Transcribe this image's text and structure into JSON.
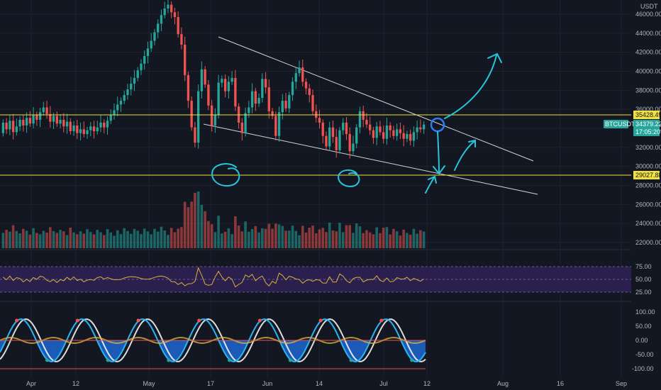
{
  "chart_data": {
    "type": "candlestick",
    "symbol": "BTCUSDT",
    "currency": "USDT",
    "price_ticks": [
      46000,
      44000,
      42000,
      40000,
      38000,
      36000,
      34000,
      32000,
      30000,
      28000,
      26000,
      24000,
      22000
    ],
    "ylim": [
      21000,
      46500
    ],
    "date_ticks": [
      "Apr",
      "12",
      "May",
      "17",
      "Jun",
      "14",
      "Jul",
      "12",
      "Aug",
      "16",
      "Sep"
    ],
    "resistance_level": "35428.49",
    "support_level": "29027.88",
    "last_price": "34379.22",
    "countdown": "17:05:20",
    "visible_high": 47000,
    "sequence": [
      [
        33.5,
        34.6
      ],
      [
        34.6,
        33.9
      ],
      [
        33.9,
        34.8
      ],
      [
        34.8,
        33.6
      ],
      [
        33.6,
        34.2
      ],
      [
        34.2,
        34.9
      ],
      [
        34.9,
        34.3
      ],
      [
        34.3,
        35.1
      ],
      [
        35.1,
        34.5
      ],
      [
        34.5,
        35.4
      ],
      [
        35.4,
        34.9
      ],
      [
        34.9,
        35.7
      ],
      [
        35.7,
        36.2
      ],
      [
        36.2,
        35.5
      ],
      [
        35.5,
        34.7
      ],
      [
        34.7,
        35.3
      ],
      [
        35.3,
        34.5
      ],
      [
        34.5,
        34.9
      ],
      [
        34.9,
        34.2
      ],
      [
        34.2,
        34.7
      ],
      [
        34.7,
        33.7
      ],
      [
        33.7,
        34.3
      ],
      [
        34.3,
        33.5
      ],
      [
        33.5,
        33.9
      ],
      [
        33.9,
        33.4
      ],
      [
        33.4,
        33.8
      ],
      [
        33.8,
        34.2
      ],
      [
        34.2,
        33.7
      ],
      [
        33.7,
        34.1
      ],
      [
        34.1,
        34.6
      ],
      [
        34.6,
        34.1
      ],
      [
        34.1,
        34.8
      ],
      [
        34.8,
        35.4
      ],
      [
        35.4,
        35.9
      ],
      [
        35.9,
        36.5
      ],
      [
        36.5,
        36.9
      ],
      [
        36.9,
        37.5
      ],
      [
        37.5,
        38.1
      ],
      [
        38.1,
        38.7
      ],
      [
        38.7,
        39.3
      ],
      [
        39.3,
        40.1
      ],
      [
        40.1,
        40.8
      ],
      [
        40.8,
        41.6
      ],
      [
        41.6,
        42.4
      ],
      [
        42.4,
        43.2
      ],
      [
        43.2,
        44.1
      ],
      [
        44.1,
        45.0
      ],
      [
        45.0,
        45.9
      ],
      [
        45.9,
        46.6
      ],
      [
        46.6,
        47.0
      ],
      [
        47.0,
        46.2
      ],
      [
        46.2,
        45.7
      ],
      [
        45.7,
        43.9
      ],
      [
        43.9,
        42.8
      ],
      [
        42.8,
        39.6
      ],
      [
        39.6,
        36.9
      ],
      [
        36.9,
        34.1
      ],
      [
        34.1,
        32.5
      ],
      [
        32.5,
        37.9
      ],
      [
        37.9,
        40.2
      ],
      [
        40.2,
        38.6
      ],
      [
        38.6,
        36.4
      ],
      [
        36.4,
        34.3
      ],
      [
        34.3,
        35.4
      ],
      [
        35.4,
        38.8
      ],
      [
        38.8,
        39.2
      ],
      [
        39.2,
        37.9
      ],
      [
        37.9,
        38.9
      ],
      [
        38.9,
        39.3
      ],
      [
        39.3,
        36.3
      ],
      [
        36.3,
        34.6
      ],
      [
        34.6,
        33.5
      ],
      [
        33.5,
        35.6
      ],
      [
        35.6,
        36.2
      ],
      [
        36.2,
        37.9
      ],
      [
        37.9,
        36.6
      ],
      [
        36.6,
        37.2
      ],
      [
        37.2,
        39.2
      ],
      [
        39.2,
        38.3
      ],
      [
        38.3,
        35.8
      ],
      [
        35.8,
        35.3
      ],
      [
        35.3,
        33.2
      ],
      [
        33.2,
        35.7
      ],
      [
        35.7,
        36.9
      ],
      [
        36.9,
        36.1
      ],
      [
        36.1,
        37.5
      ],
      [
        37.5,
        38.9
      ],
      [
        38.9,
        39.8
      ],
      [
        39.8,
        40.4
      ],
      [
        40.4,
        38.9
      ],
      [
        38.9,
        38.2
      ],
      [
        38.2,
        37.5
      ],
      [
        37.5,
        35.8
      ],
      [
        35.8,
        35.1
      ],
      [
        35.1,
        34.6
      ],
      [
        34.6,
        33.2
      ],
      [
        33.2,
        32.1
      ],
      [
        32.1,
        34.1
      ],
      [
        34.1,
        33.1
      ],
      [
        33.1,
        31.7
      ],
      [
        31.7,
        33.8
      ],
      [
        33.8,
        34.6
      ],
      [
        34.6,
        33.4
      ],
      [
        33.4,
        31.6
      ],
      [
        31.6,
        32.4
      ],
      [
        32.4,
        34.1
      ],
      [
        34.1,
        35.8
      ],
      [
        35.8,
        34.9
      ],
      [
        34.9,
        34.4
      ],
      [
        34.4,
        33.8
      ],
      [
        33.8,
        33.0
      ],
      [
        33.0,
        34.2
      ],
      [
        34.2,
        33.6
      ],
      [
        33.6,
        32.9
      ],
      [
        32.9,
        34.3
      ],
      [
        34.3,
        33.8
      ],
      [
        33.8,
        33.2
      ],
      [
        33.2,
        33.9
      ],
      [
        33.9,
        33.5
      ],
      [
        33.5,
        32.9
      ],
      [
        32.9,
        33.4
      ],
      [
        33.4,
        32.7
      ],
      [
        32.7,
        33.6
      ],
      [
        33.6,
        34.1
      ],
      [
        34.1,
        33.9
      ],
      [
        33.9,
        34.4
      ]
    ],
    "rsi_levels": [
      "75.00",
      "50.00",
      "25.00"
    ],
    "osc_levels": [
      "100.00",
      "50.00",
      "0.00",
      "-50.00",
      "-100.00"
    ]
  },
  "colors": {
    "up": "#26a69a",
    "down": "#ef5350",
    "level_line": "#f0e040",
    "trend_line": "#d1d4dc",
    "drawing": "#26c6da",
    "rsi_band": "#4a2a78",
    "rsi_line": "#d9b23a",
    "osc_fast": "#29b6f6",
    "osc_slow": "#ef9a9a",
    "osc_fill": "#1e62c8",
    "tag_last": "#26a69a"
  }
}
